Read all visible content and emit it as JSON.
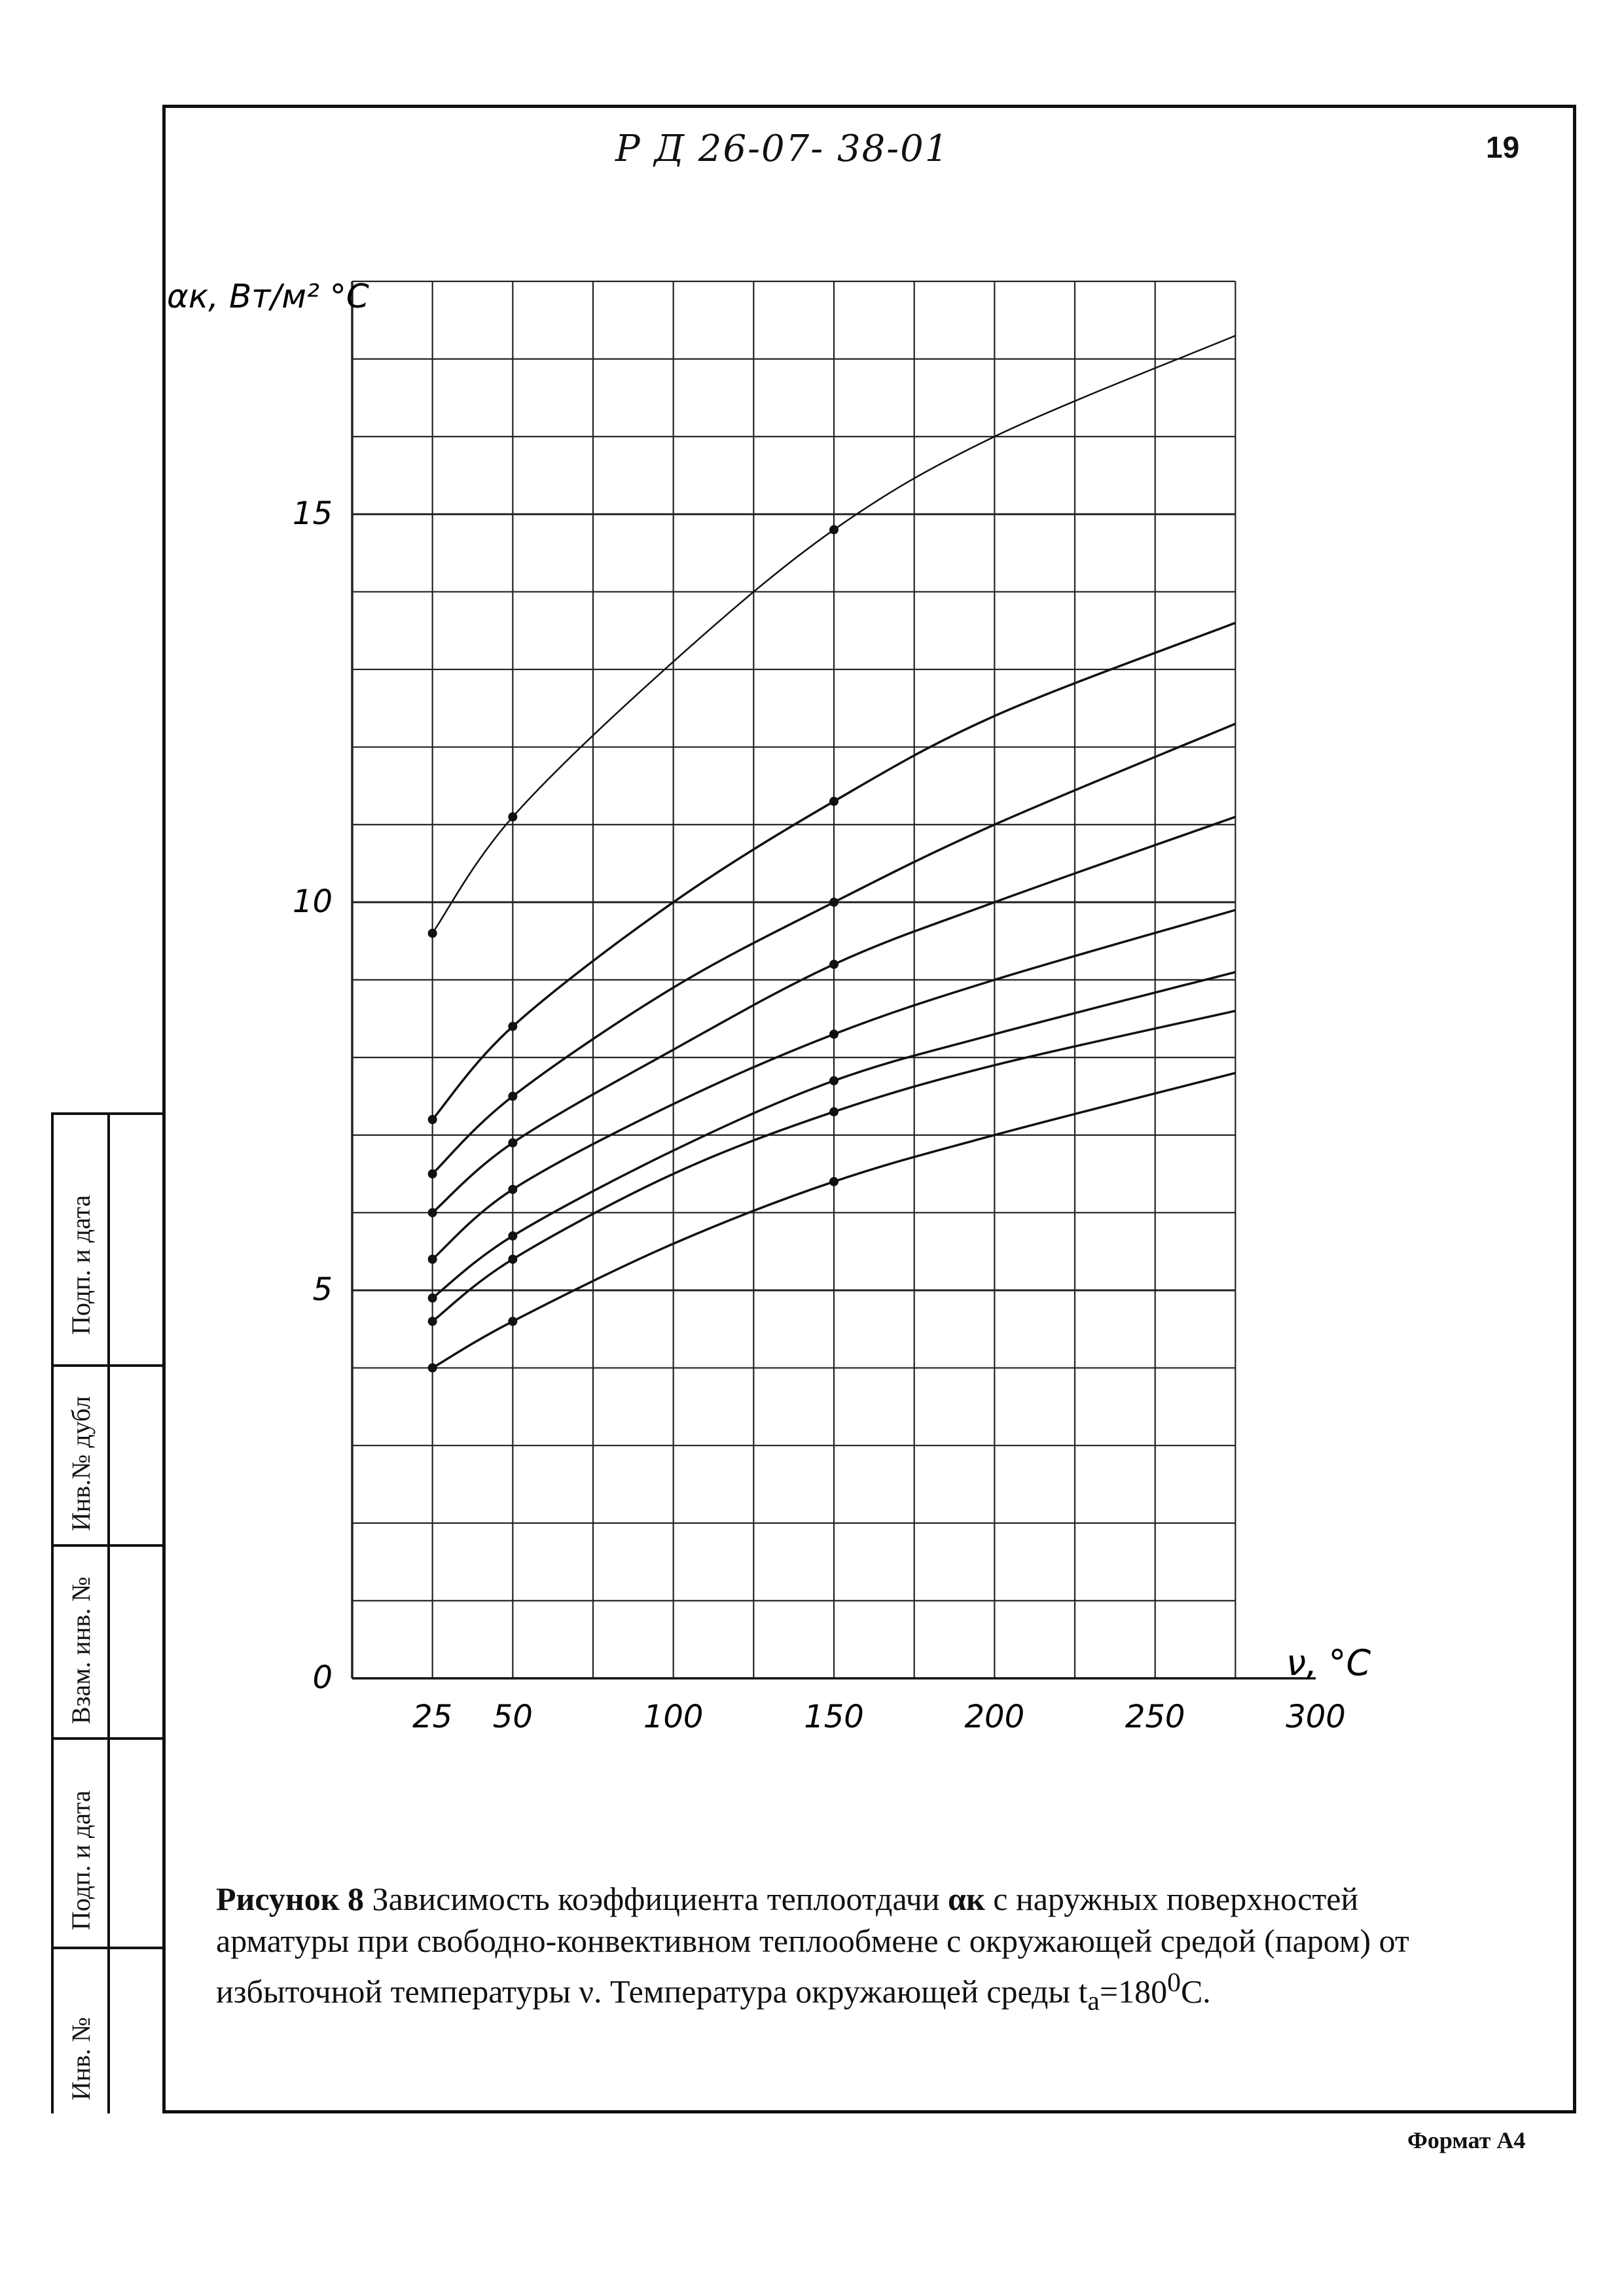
{
  "header": {
    "doc_code": "Р Д 26-07- 38-01",
    "page_number": "19"
  },
  "side_stamp": {
    "labels": [
      "Подп. и дата",
      "Инв.№ дубл",
      "Взам. инв. №",
      "Подп. и дата",
      "Инв. №"
    ]
  },
  "chart_data": {
    "type": "line",
    "ylabel": "αк, Вт/м² °С",
    "xlabel": "ν, °С",
    "xlim": [
      0,
      300
    ],
    "ylim": [
      0,
      18
    ],
    "x_ticks": [
      25,
      50,
      100,
      150,
      200,
      250,
      300
    ],
    "x_tick_labels": [
      "25",
      "50",
      "100",
      "150",
      "200",
      "250",
      "300"
    ],
    "y_tick_labels": [
      "0",
      "5",
      "10",
      "15"
    ],
    "y_ticks": [
      0,
      5,
      10,
      15
    ],
    "grid": true,
    "series": [
      {
        "points": [
          [
            25,
            9.6
          ],
          [
            50,
            11.1
          ],
          [
            100,
            13.1
          ],
          [
            150,
            14.8
          ],
          [
            200,
            16.0
          ],
          [
            275,
            17.3
          ]
        ]
      },
      {
        "points": [
          [
            25,
            7.2
          ],
          [
            50,
            8.4
          ],
          [
            100,
            10.0
          ],
          [
            150,
            11.3
          ],
          [
            200,
            12.4
          ],
          [
            275,
            13.6
          ]
        ]
      },
      {
        "points": [
          [
            25,
            6.5
          ],
          [
            50,
            7.5
          ],
          [
            100,
            8.9
          ],
          [
            150,
            10.0
          ],
          [
            200,
            11.0
          ],
          [
            275,
            12.3
          ]
        ]
      },
      {
        "points": [
          [
            25,
            6.0
          ],
          [
            50,
            6.9
          ],
          [
            100,
            8.1
          ],
          [
            150,
            9.2
          ],
          [
            200,
            10.0
          ],
          [
            275,
            11.1
          ]
        ]
      },
      {
        "points": [
          [
            25,
            5.4
          ],
          [
            50,
            6.3
          ],
          [
            100,
            7.4
          ],
          [
            150,
            8.3
          ],
          [
            200,
            9.0
          ],
          [
            275,
            9.9
          ]
        ]
      },
      {
        "points": [
          [
            25,
            4.9
          ],
          [
            50,
            5.7
          ],
          [
            100,
            6.8
          ],
          [
            150,
            7.7
          ],
          [
            200,
            8.3
          ],
          [
            275,
            9.1
          ]
        ]
      },
      {
        "points": [
          [
            25,
            4.6
          ],
          [
            50,
            5.4
          ],
          [
            100,
            6.5
          ],
          [
            150,
            7.3
          ],
          [
            200,
            7.9
          ],
          [
            275,
            8.6
          ]
        ]
      },
      {
        "points": [
          [
            25,
            4.0
          ],
          [
            50,
            4.6
          ],
          [
            100,
            5.6
          ],
          [
            150,
            6.4
          ],
          [
            200,
            7.0
          ],
          [
            275,
            7.8
          ]
        ]
      }
    ],
    "marked_x": [
      25,
      50,
      150
    ]
  },
  "caption": {
    "figure_label": "Рисунок 8",
    "text_part1": " Зависимость коэффициента теплоотдачи ",
    "alpha_symbol": "αк",
    "text_part2": " с наружных поверхностей арматуры при свободно-конвективном теплообмене с окружающей средой (паром) от избыточной температуры ν. Температура окружающей среды t",
    "subscript": "а",
    "text_part3": "=180",
    "superscript": "0",
    "text_part4": "С."
  },
  "footer": {
    "format_label": "Формат А4"
  }
}
